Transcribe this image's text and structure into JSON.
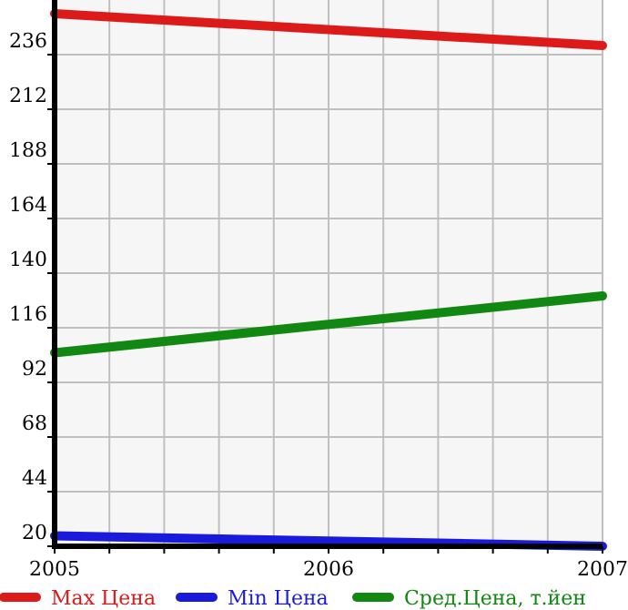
{
  "chart_data": {
    "type": "line",
    "x": [
      2005,
      2007
    ],
    "series": [
      {
        "name": "Max Цена",
        "color": "#dd1a1a",
        "values": [
          254,
          240
        ]
      },
      {
        "name": "Min Цена",
        "color": "#1a1add",
        "values": [
          24.6,
          20
        ]
      },
      {
        "name": "Сред.Цена, т.йен",
        "color": "#118811",
        "values": [
          105,
          130
        ]
      }
    ],
    "xlim": [
      2005,
      2007
    ],
    "xticks": [
      2005,
      {
        "value": 2005.2,
        "label": null
      },
      {
        "value": 2005.4,
        "label": null
      },
      {
        "value": 2005.6,
        "label": null
      },
      {
        "value": 2005.8,
        "label": null
      },
      2006,
      {
        "value": 2006.2,
        "label": null
      },
      {
        "value": 2006.4,
        "label": null
      },
      {
        "value": 2006.6,
        "label": null
      },
      {
        "value": 2006.8,
        "label": null
      },
      2007
    ],
    "ylim": [
      20,
      260
    ],
    "yticks": [
      20,
      44,
      68,
      92,
      116,
      140,
      164,
      188,
      212,
      236
    ],
    "grid": true,
    "legend": "bottom",
    "marker": "none",
    "line_style": "solid"
  }
}
